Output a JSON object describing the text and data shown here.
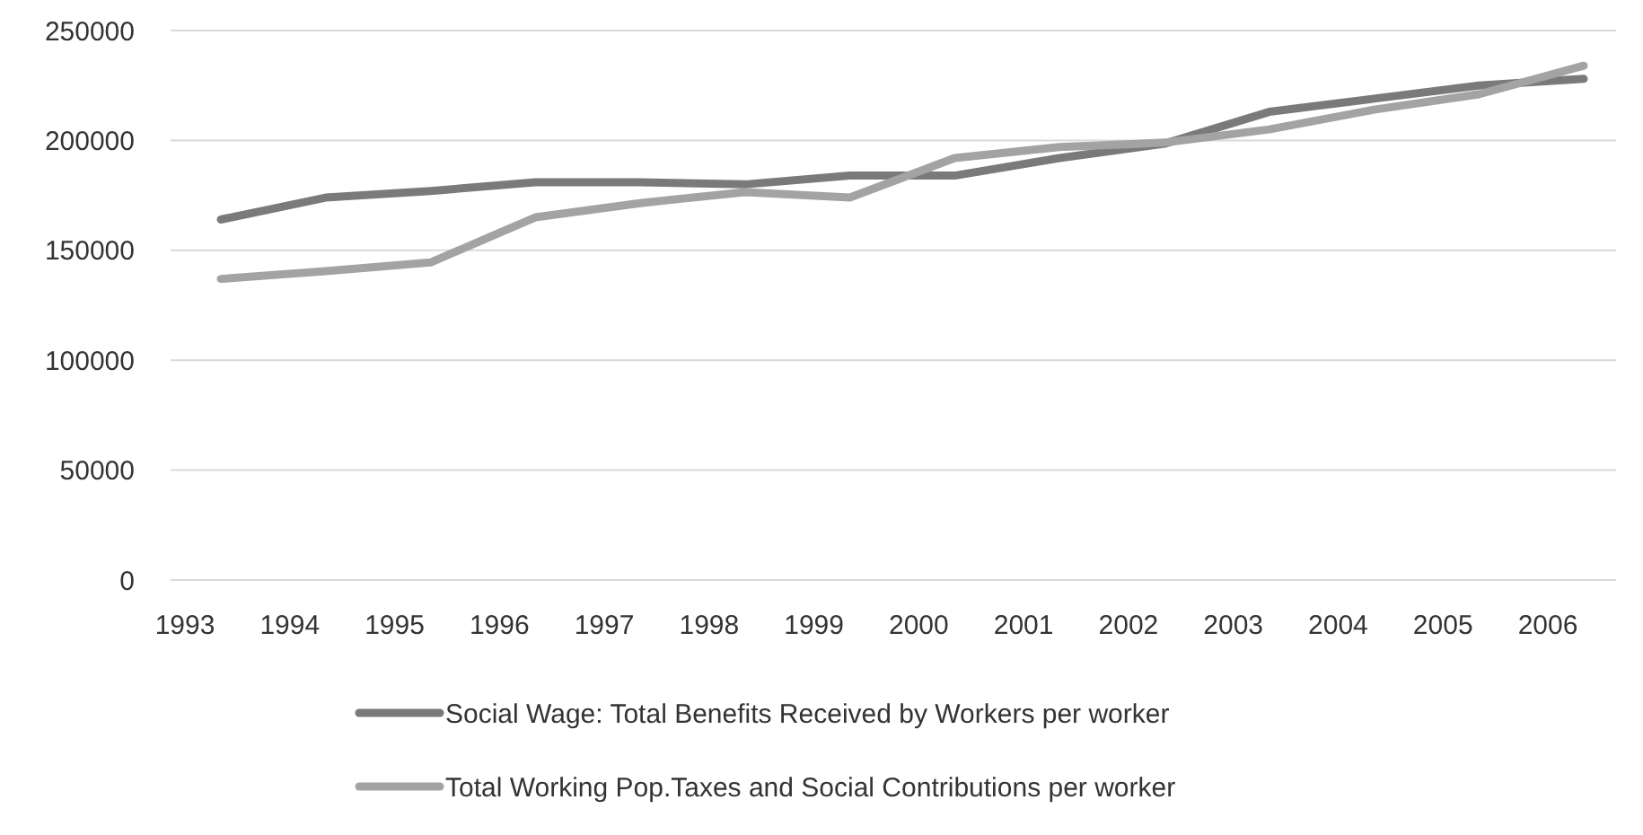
{
  "chart_data": {
    "type": "line",
    "categories": [
      "1993",
      "1994",
      "1995",
      "1996",
      "1997",
      "1998",
      "1999",
      "2000",
      "2001",
      "2002",
      "2003",
      "2004",
      "2005",
      "2006"
    ],
    "series": [
      {
        "name": "Social Wage: Total Benefits Received by Workers per worker",
        "color": "#7a7a7a",
        "values": [
          164000,
          174000,
          177000,
          181000,
          181000,
          180000,
          184000,
          184000,
          192000,
          198500,
          213000,
          219000,
          225000,
          228000
        ]
      },
      {
        "name": "Total Working Pop.Taxes and Social Contributions per worker",
        "color": "#a3a3a3",
        "values": [
          137000,
          140500,
          144500,
          165000,
          171500,
          176500,
          174000,
          192000,
          197000,
          199000,
          205000,
          214000,
          221000,
          234000
        ]
      }
    ],
    "ylim": [
      0,
      250000
    ],
    "yticks": [
      0,
      50000,
      100000,
      150000,
      200000,
      250000
    ],
    "grid": "y",
    "legend": "bottom",
    "marker": "none",
    "line_style": "solid"
  }
}
